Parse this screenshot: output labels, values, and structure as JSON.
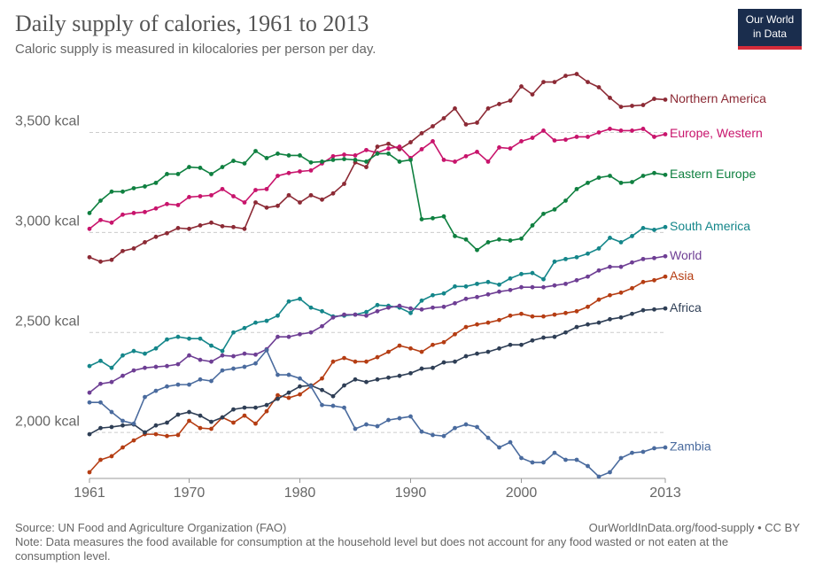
{
  "chart_data": {
    "type": "line",
    "title": "Daily supply of calories, 1961 to 2013",
    "subtitle": "Caloric supply is measured in kilocalories per person per day.",
    "logo": [
      "Our World",
      "in Data"
    ],
    "source": "Source: UN Food and Agriculture Organization (FAO)",
    "url": "OurWorldInData.org/food-supply • CC BY",
    "note": "Note: Data measures the food available for consumption at the household level but does not account for any food wasted or not eaten at the consumption level.",
    "x": [
      1961,
      1962,
      1963,
      1964,
      1965,
      1966,
      1967,
      1968,
      1969,
      1970,
      1971,
      1972,
      1973,
      1974,
      1975,
      1976,
      1977,
      1978,
      1979,
      1980,
      1981,
      1982,
      1983,
      1984,
      1985,
      1986,
      1987,
      1988,
      1989,
      1990,
      1991,
      1992,
      1993,
      1994,
      1995,
      1996,
      1997,
      1998,
      1999,
      2000,
      2001,
      2002,
      2003,
      2004,
      2005,
      2006,
      2007,
      2008,
      2009,
      2010,
      2011,
      2012,
      2013
    ],
    "xlim": [
      1961,
      2013
    ],
    "xticks": [
      1961,
      1970,
      1980,
      1990,
      2000,
      2013
    ],
    "ylim": [
      1770,
      3830
    ],
    "yticks": [
      {
        "value": 2000,
        "label": "2,000 kcal"
      },
      {
        "value": 2500,
        "label": "2,500 kcal"
      },
      {
        "value": 3000,
        "label": "3,000 kcal"
      },
      {
        "value": 3500,
        "label": "3,500 kcal"
      }
    ],
    "grid": true,
    "series": [
      {
        "name": "Northern America",
        "color": "#8c2a35",
        "values": [
          2876,
          2854,
          2863,
          2907,
          2920,
          2951,
          2978,
          2996,
          3022,
          3018,
          3035,
          3049,
          3031,
          3027,
          3018,
          3150,
          3124,
          3133,
          3186,
          3150,
          3186,
          3164,
          3195,
          3243,
          3350,
          3327,
          3429,
          3443,
          3416,
          3451,
          3496,
          3531,
          3571,
          3620,
          3540,
          3549,
          3620,
          3642,
          3659,
          3730,
          3690,
          3752,
          3752,
          3783,
          3792,
          3752,
          3726,
          3673,
          3628,
          3633,
          3637,
          3668,
          3664
        ]
      },
      {
        "name": "Europe, Western",
        "color": "#c8146c",
        "values": [
          3018,
          3062,
          3049,
          3089,
          3097,
          3102,
          3120,
          3142,
          3137,
          3177,
          3181,
          3186,
          3217,
          3181,
          3150,
          3212,
          3217,
          3283,
          3297,
          3305,
          3310,
          3345,
          3381,
          3389,
          3385,
          3412,
          3398,
          3420,
          3429,
          3372,
          3416,
          3456,
          3363,
          3354,
          3381,
          3403,
          3354,
          3425,
          3420,
          3456,
          3473,
          3509,
          3460,
          3464,
          3478,
          3478,
          3500,
          3518,
          3509,
          3509,
          3518,
          3478,
          3491
        ]
      },
      {
        "name": "Eastern Europe",
        "color": "#0f8040",
        "values": [
          3097,
          3159,
          3204,
          3204,
          3221,
          3230,
          3248,
          3292,
          3292,
          3327,
          3323,
          3292,
          3327,
          3358,
          3345,
          3407,
          3372,
          3394,
          3385,
          3385,
          3350,
          3354,
          3363,
          3367,
          3363,
          3354,
          3394,
          3394,
          3354,
          3363,
          3066,
          3071,
          3080,
          2982,
          2965,
          2912,
          2951,
          2965,
          2960,
          2969,
          3035,
          3093,
          3115,
          3159,
          3217,
          3248,
          3274,
          3283,
          3248,
          3252,
          3283,
          3297,
          3288
        ]
      },
      {
        "name": "South America",
        "color": "#14868a",
        "values": [
          2332,
          2358,
          2323,
          2385,
          2407,
          2394,
          2420,
          2465,
          2478,
          2469,
          2469,
          2434,
          2407,
          2500,
          2522,
          2549,
          2558,
          2584,
          2655,
          2668,
          2624,
          2606,
          2580,
          2584,
          2589,
          2602,
          2637,
          2633,
          2624,
          2597,
          2659,
          2686,
          2695,
          2730,
          2730,
          2743,
          2752,
          2739,
          2770,
          2792,
          2797,
          2766,
          2854,
          2867,
          2876,
          2894,
          2920,
          2973,
          2951,
          2982,
          3022,
          3013,
          3027
        ]
      },
      {
        "name": "World",
        "color": "#6e3e94",
        "values": [
          2199,
          2243,
          2252,
          2283,
          2310,
          2323,
          2328,
          2332,
          2341,
          2385,
          2363,
          2354,
          2385,
          2381,
          2394,
          2389,
          2416,
          2478,
          2478,
          2491,
          2500,
          2531,
          2575,
          2589,
          2589,
          2584,
          2606,
          2624,
          2633,
          2620,
          2615,
          2624,
          2628,
          2646,
          2668,
          2677,
          2690,
          2704,
          2712,
          2726,
          2726,
          2726,
          2735,
          2743,
          2761,
          2779,
          2810,
          2828,
          2828,
          2850,
          2867,
          2872,
          2881
        ]
      },
      {
        "name": "Asia",
        "color": "#b53d13",
        "values": [
          1801,
          1863,
          1881,
          1925,
          1960,
          1991,
          1991,
          1982,
          1987,
          2058,
          2022,
          2018,
          2075,
          2049,
          2084,
          2044,
          2106,
          2186,
          2173,
          2190,
          2230,
          2270,
          2354,
          2372,
          2354,
          2354,
          2376,
          2403,
          2434,
          2420,
          2403,
          2438,
          2451,
          2491,
          2527,
          2540,
          2549,
          2562,
          2584,
          2593,
          2580,
          2580,
          2589,
          2597,
          2606,
          2628,
          2664,
          2686,
          2699,
          2721,
          2752,
          2761,
          2779
        ]
      },
      {
        "name": "Africa",
        "color": "#2e3e55",
        "values": [
          1991,
          2022,
          2027,
          2035,
          2040,
          2000,
          2035,
          2049,
          2089,
          2102,
          2084,
          2053,
          2075,
          2115,
          2124,
          2124,
          2137,
          2168,
          2199,
          2230,
          2235,
          2212,
          2181,
          2235,
          2265,
          2252,
          2265,
          2274,
          2283,
          2296,
          2319,
          2323,
          2350,
          2354,
          2381,
          2394,
          2403,
          2420,
          2438,
          2438,
          2460,
          2474,
          2478,
          2500,
          2527,
          2540,
          2549,
          2566,
          2575,
          2593,
          2611,
          2615,
          2620
        ]
      },
      {
        "name": "Zambia",
        "color": "#4a6b9e",
        "values": [
          2150,
          2150,
          2102,
          2058,
          2044,
          2177,
          2208,
          2230,
          2239,
          2239,
          2265,
          2257,
          2310,
          2319,
          2328,
          2345,
          2411,
          2288,
          2288,
          2270,
          2230,
          2137,
          2133,
          2124,
          2018,
          2040,
          2031,
          2062,
          2071,
          2080,
          2004,
          1987,
          1982,
          2022,
          2040,
          2027,
          1973,
          1925,
          1951,
          1872,
          1850,
          1850,
          1898,
          1863,
          1863,
          1832,
          1779,
          1801,
          1872,
          1898,
          1903,
          1921,
          1925
        ]
      }
    ]
  }
}
